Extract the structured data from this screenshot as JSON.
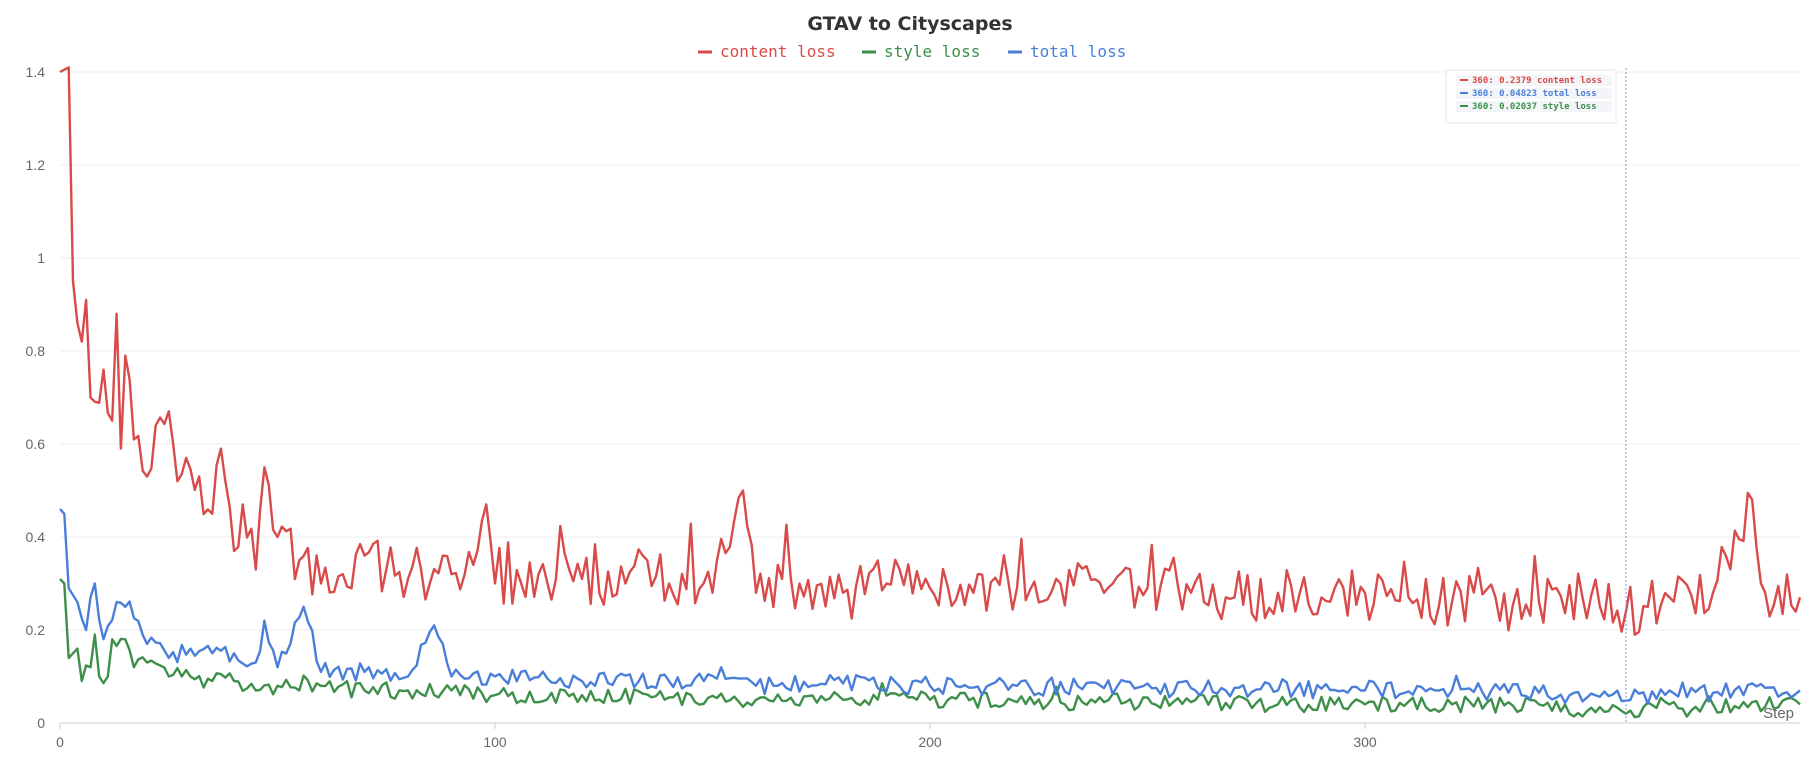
{
  "chart_data": {
    "type": "line",
    "title": "GTAV to Cityscapes",
    "xlabel": "Step",
    "ylabel": "",
    "xlim": [
      0,
      400
    ],
    "ylim": [
      0,
      1.4
    ],
    "x_ticks": [
      "0",
      "100",
      "200",
      "300"
    ],
    "y_ticks": [
      "0",
      "0.2",
      "0.4",
      "0.6",
      "0.8",
      "1",
      "1.2",
      "1.4"
    ],
    "x_tick_values": [
      0,
      100,
      200,
      300
    ],
    "y_tick_values": [
      0,
      0.2,
      0.4,
      0.6,
      0.8,
      1.0,
      1.2,
      1.4
    ],
    "grid": true,
    "legend_position": "top-center",
    "hover": {
      "step": 360,
      "lines": [
        {
          "text": "360: 0.2379 content loss",
          "color": "#d94a4a"
        },
        {
          "text": "360: 0.04823 total loss",
          "color": "#4a7fd9"
        },
        {
          "text": "360: 0.02037 style loss",
          "color": "#3d8f4a"
        }
      ]
    },
    "series": [
      {
        "name": "content loss",
        "color": "#d94a4a",
        "anchors": [
          [
            0,
            1.4
          ],
          [
            2,
            1.41
          ],
          [
            3,
            0.95
          ],
          [
            5,
            0.82
          ],
          [
            6,
            0.91
          ],
          [
            7,
            0.7
          ],
          [
            10,
            0.76
          ],
          [
            12,
            0.65
          ],
          [
            13,
            0.88
          ],
          [
            14,
            0.59
          ],
          [
            15,
            0.79
          ],
          [
            17,
            0.61
          ],
          [
            20,
            0.53
          ],
          [
            22,
            0.64
          ],
          [
            25,
            0.67
          ],
          [
            27,
            0.52
          ],
          [
            29,
            0.57
          ],
          [
            32,
            0.53
          ],
          [
            35,
            0.45
          ],
          [
            37,
            0.59
          ],
          [
            40,
            0.37
          ],
          [
            42,
            0.47
          ],
          [
            45,
            0.33
          ],
          [
            47,
            0.55
          ],
          [
            50,
            0.4
          ],
          [
            55,
            0.35
          ],
          [
            60,
            0.3
          ],
          [
            65,
            0.32
          ],
          [
            70,
            0.36
          ],
          [
            75,
            0.33
          ],
          [
            80,
            0.31
          ],
          [
            85,
            0.3
          ],
          [
            90,
            0.32
          ],
          [
            95,
            0.34
          ],
          [
            98,
            0.47
          ],
          [
            100,
            0.3
          ],
          [
            110,
            0.32
          ],
          [
            120,
            0.31
          ],
          [
            130,
            0.3
          ],
          [
            135,
            0.35
          ],
          [
            140,
            0.3
          ],
          [
            150,
            0.28
          ],
          [
            157,
            0.5
          ],
          [
            160,
            0.28
          ],
          [
            170,
            0.3
          ],
          [
            180,
            0.28
          ],
          [
            190,
            0.3
          ],
          [
            200,
            0.29
          ],
          [
            210,
            0.28
          ],
          [
            220,
            0.29
          ],
          [
            230,
            0.3
          ],
          [
            240,
            0.28
          ],
          [
            250,
            0.29
          ],
          [
            260,
            0.28
          ],
          [
            270,
            0.27
          ],
          [
            280,
            0.28
          ],
          [
            290,
            0.27
          ],
          [
            300,
            0.28
          ],
          [
            310,
            0.27
          ],
          [
            320,
            0.26
          ],
          [
            330,
            0.27
          ],
          [
            340,
            0.26
          ],
          [
            350,
            0.27
          ],
          [
            360,
            0.24
          ],
          [
            365,
            0.25
          ],
          [
            370,
            0.27
          ],
          [
            380,
            0.28
          ],
          [
            389,
            0.48
          ],
          [
            392,
            0.28
          ],
          [
            400,
            0.27
          ]
        ]
      },
      {
        "name": "style loss",
        "color": "#3d8f4a",
        "anchors": [
          [
            0,
            0.31
          ],
          [
            1,
            0.3
          ],
          [
            2,
            0.14
          ],
          [
            4,
            0.16
          ],
          [
            5,
            0.09
          ],
          [
            7,
            0.12
          ],
          [
            8,
            0.19
          ],
          [
            9,
            0.1
          ],
          [
            11,
            0.1
          ],
          [
            12,
            0.18
          ],
          [
            15,
            0.18
          ],
          [
            17,
            0.12
          ],
          [
            20,
            0.13
          ],
          [
            25,
            0.1
          ],
          [
            30,
            0.1
          ],
          [
            35,
            0.09
          ],
          [
            40,
            0.09
          ],
          [
            45,
            0.07
          ],
          [
            50,
            0.08
          ],
          [
            55,
            0.07
          ],
          [
            60,
            0.08
          ],
          [
            70,
            0.07
          ],
          [
            80,
            0.07
          ],
          [
            90,
            0.07
          ],
          [
            100,
            0.06
          ],
          [
            120,
            0.06
          ],
          [
            140,
            0.055
          ],
          [
            160,
            0.05
          ],
          [
            180,
            0.05
          ],
          [
            200,
            0.05
          ],
          [
            220,
            0.045
          ],
          [
            240,
            0.045
          ],
          [
            260,
            0.045
          ],
          [
            280,
            0.04
          ],
          [
            300,
            0.04
          ],
          [
            320,
            0.04
          ],
          [
            340,
            0.04
          ],
          [
            360,
            0.02
          ],
          [
            370,
            0.04
          ],
          [
            380,
            0.04
          ],
          [
            400,
            0.04
          ]
        ]
      },
      {
        "name": "total loss",
        "color": "#4a7fd9",
        "anchors": [
          [
            0,
            0.46
          ],
          [
            1,
            0.45
          ],
          [
            2,
            0.29
          ],
          [
            4,
            0.26
          ],
          [
            6,
            0.2
          ],
          [
            8,
            0.3
          ],
          [
            10,
            0.18
          ],
          [
            13,
            0.26
          ],
          [
            15,
            0.25
          ],
          [
            20,
            0.17
          ],
          [
            25,
            0.14
          ],
          [
            30,
            0.16
          ],
          [
            35,
            0.15
          ],
          [
            40,
            0.15
          ],
          [
            45,
            0.13
          ],
          [
            47,
            0.22
          ],
          [
            50,
            0.12
          ],
          [
            56,
            0.25
          ],
          [
            60,
            0.11
          ],
          [
            70,
            0.11
          ],
          [
            80,
            0.1
          ],
          [
            86,
            0.21
          ],
          [
            90,
            0.1
          ],
          [
            100,
            0.1
          ],
          [
            120,
            0.09
          ],
          [
            140,
            0.09
          ],
          [
            160,
            0.08
          ],
          [
            180,
            0.085
          ],
          [
            200,
            0.08
          ],
          [
            220,
            0.08
          ],
          [
            240,
            0.075
          ],
          [
            260,
            0.075
          ],
          [
            280,
            0.07
          ],
          [
            300,
            0.07
          ],
          [
            320,
            0.07
          ],
          [
            340,
            0.065
          ],
          [
            360,
            0.048
          ],
          [
            370,
            0.07
          ],
          [
            380,
            0.065
          ],
          [
            400,
            0.07
          ]
        ]
      }
    ]
  }
}
